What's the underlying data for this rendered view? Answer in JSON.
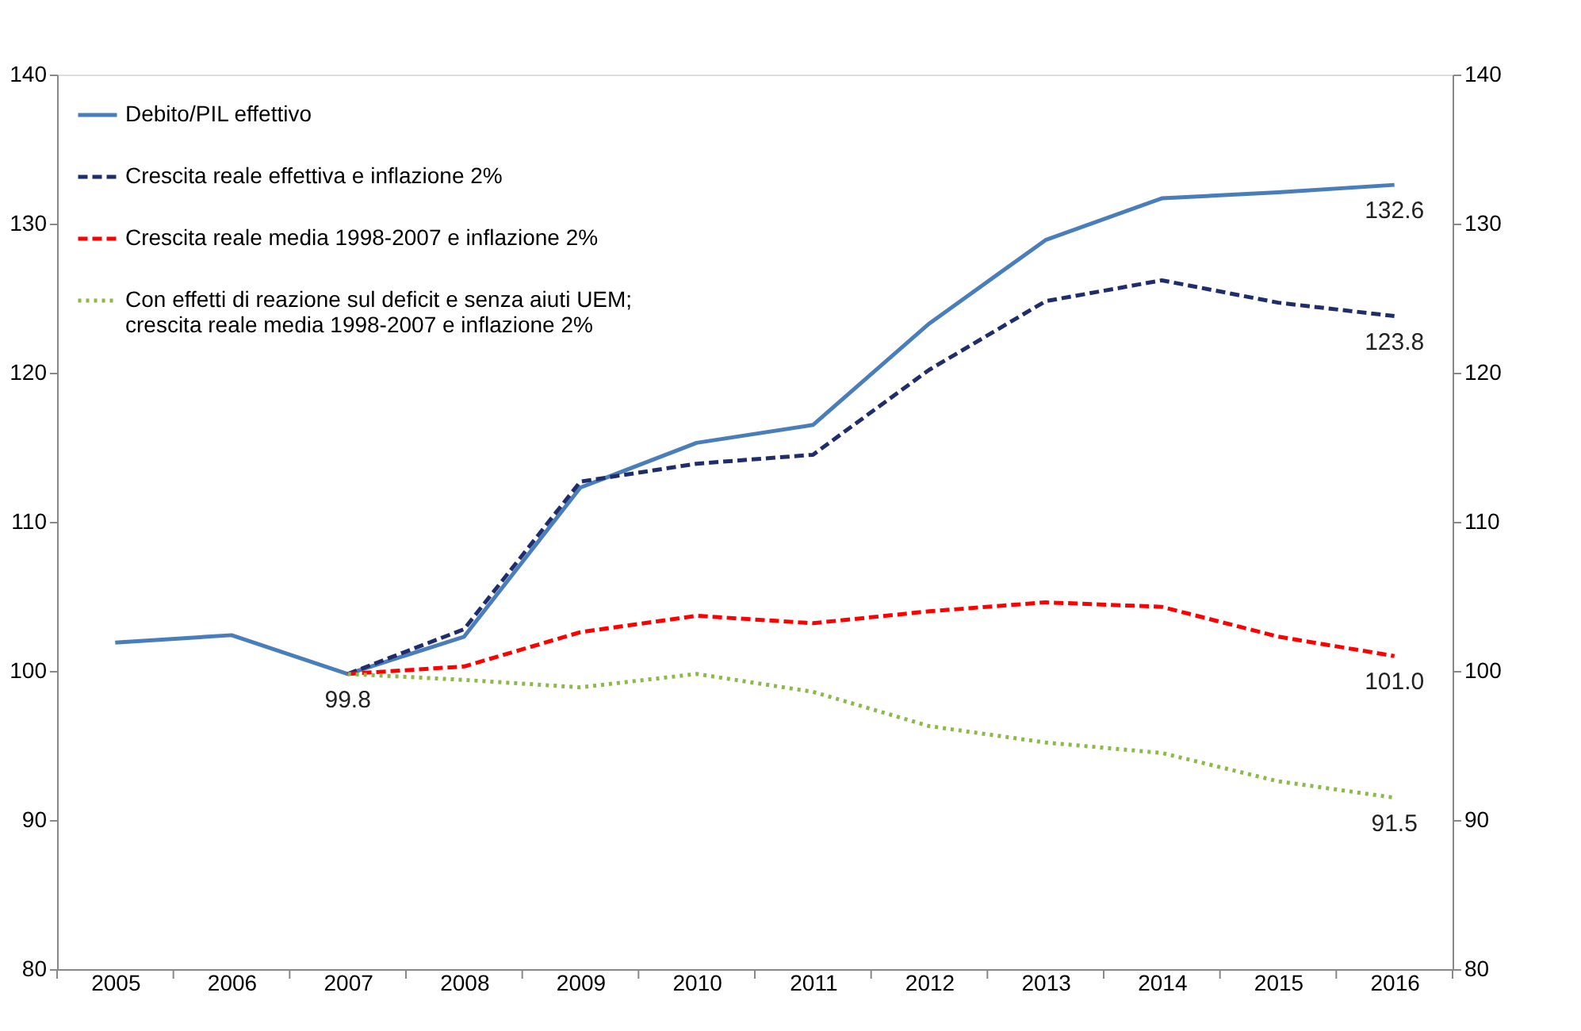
{
  "chart_data": {
    "type": "line",
    "categories": [
      "2005",
      "2006",
      "2007",
      "2008",
      "2009",
      "2010",
      "2011",
      "2012",
      "2013",
      "2014",
      "2015",
      "2016"
    ],
    "series": [
      {
        "name": "Debito/PIL effettivo",
        "color": "#4a7ebb",
        "line_style": "solid",
        "values": [
          101.9,
          102.4,
          99.8,
          102.3,
          112.3,
          115.3,
          116.5,
          123.3,
          128.9,
          131.7,
          132.1,
          132.6
        ],
        "value_labels": [
          null,
          null,
          "99.8",
          null,
          null,
          null,
          null,
          null,
          null,
          null,
          null,
          "132.6"
        ]
      },
      {
        "name": "Crescita reale effettiva e inflazione 2%",
        "color": "#1f2d6b",
        "line_style": "dashed",
        "values": [
          null,
          null,
          99.8,
          102.8,
          112.7,
          113.9,
          114.5,
          120.2,
          124.8,
          126.2,
          124.7,
          123.8
        ],
        "value_labels": [
          null,
          null,
          null,
          null,
          null,
          null,
          null,
          null,
          null,
          null,
          null,
          "123.8"
        ]
      },
      {
        "name": "Crescita reale media 1998-2007 e inflazione 2%",
        "color": "#ff0000",
        "line_style": "dashed",
        "values": [
          null,
          null,
          99.8,
          100.3,
          102.6,
          103.7,
          103.2,
          104.0,
          104.6,
          104.3,
          102.3,
          101.0
        ],
        "value_labels": [
          null,
          null,
          null,
          null,
          null,
          null,
          null,
          null,
          null,
          null,
          null,
          "101.0"
        ]
      },
      {
        "name": "Con effetti di reazione sul deficit e senza aiuti UEM;\ncrescita reale media 1998-2007 e inflazione 2%",
        "color": "#8cb94a",
        "line_style": "dotted",
        "values": [
          null,
          null,
          99.8,
          99.4,
          98.9,
          99.8,
          98.6,
          96.3,
          95.2,
          94.5,
          92.6,
          91.5
        ],
        "value_labels": [
          null,
          null,
          null,
          null,
          null,
          null,
          null,
          null,
          null,
          null,
          null,
          "91.5"
        ]
      }
    ],
    "ylim": [
      80,
      140
    ],
    "yticks": [
      80,
      90,
      100,
      110,
      120,
      130,
      140
    ],
    "y2lim": [
      80,
      140
    ],
    "y2ticks": [
      80,
      90,
      100,
      110,
      120,
      130,
      140
    ],
    "grid": false,
    "legend": "top left",
    "marker": "none"
  }
}
